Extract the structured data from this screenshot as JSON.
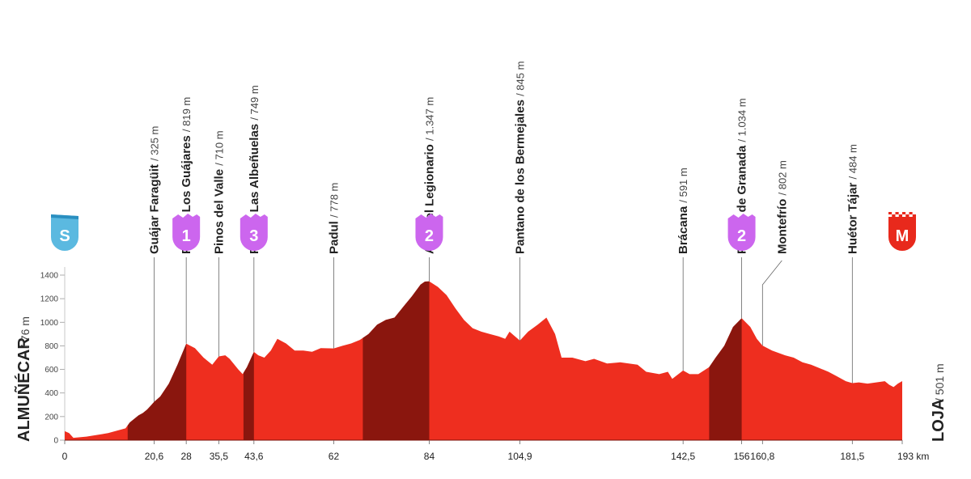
{
  "chart_data": {
    "type": "area",
    "start": {
      "name": "ALMUÑÉCAR",
      "alt": "/ 76 m",
      "badge": "S",
      "badge_color": "#5bb9e0"
    },
    "finish": {
      "name": "LOJA",
      "alt": "/ 501 m",
      "badge": "M",
      "badge_color": "#e8291c"
    },
    "ylim": [
      0,
      1400
    ],
    "y_ticks": [
      "0",
      "200",
      "400",
      "600",
      "800",
      "1000",
      "1200",
      "1400"
    ],
    "xlim": [
      0,
      193
    ],
    "x_ticks": [
      {
        "v": 0,
        "label": "0"
      },
      {
        "v": 20.6,
        "label": "20,6"
      },
      {
        "v": 28,
        "label": "28"
      },
      {
        "v": 35.5,
        "label": "35,5"
      },
      {
        "v": 43.6,
        "label": "43,6"
      },
      {
        "v": 62,
        "label": "62"
      },
      {
        "v": 84,
        "label": "84"
      },
      {
        "v": 104.9,
        "label": "104,9"
      },
      {
        "v": 142.5,
        "label": "142,5"
      },
      {
        "v": 156,
        "label": "156"
      },
      {
        "v": 160.8,
        "label": "160,8"
      },
      {
        "v": 181.5,
        "label": "181,5"
      },
      {
        "v": 193,
        "label": "193 km"
      }
    ],
    "waypoints": [
      {
        "km": 20.6,
        "name": "Guájar Faragüit",
        "alt": "/ 325 m"
      },
      {
        "km": 28,
        "name": "Puerto Los Guájares",
        "alt": "/ 819 m",
        "category": "1"
      },
      {
        "km": 35.5,
        "name": "Pinos del Valle",
        "alt": "/ 710 m"
      },
      {
        "km": 43.6,
        "name": "Puerto Las Albeñuelas",
        "alt": "/ 749 m",
        "category": "3"
      },
      {
        "km": 62,
        "name": "Padul",
        "alt": "/ 778 m"
      },
      {
        "km": 84,
        "name": "Alto del Legionario",
        "alt": "/ 1.347 m",
        "category": "2"
      },
      {
        "km": 104.9,
        "name": "Pantano de los Bermejales",
        "alt": "/ 845 m"
      },
      {
        "km": 142.5,
        "name": "Brácana",
        "alt": "/ 591 m"
      },
      {
        "km": 156,
        "name": "Puerto de Granada",
        "alt": "/ 1.034 m",
        "category": "2"
      },
      {
        "km": 160.8,
        "name": "Montefrío",
        "alt": "/ 802 m"
      },
      {
        "km": 181.5,
        "name": "Huétor Tájar",
        "alt": "/ 484 m"
      }
    ],
    "climbs": [
      {
        "from": 14.5,
        "to": 28
      },
      {
        "from": 41.2,
        "to": 43.6
      },
      {
        "from": 68.7,
        "to": 84
      },
      {
        "from": 148.5,
        "to": 156
      }
    ],
    "profile": [
      [
        0,
        76
      ],
      [
        1,
        60
      ],
      [
        2,
        20
      ],
      [
        5,
        30
      ],
      [
        10,
        60
      ],
      [
        14,
        100
      ],
      [
        15,
        150
      ],
      [
        16,
        180
      ],
      [
        17,
        210
      ],
      [
        18,
        230
      ],
      [
        19,
        260
      ],
      [
        20,
        300
      ],
      [
        20.6,
        325
      ],
      [
        22,
        370
      ],
      [
        24,
        480
      ],
      [
        26,
        640
      ],
      [
        28,
        819
      ],
      [
        30,
        780
      ],
      [
        32,
        700
      ],
      [
        34,
        640
      ],
      [
        35.5,
        710
      ],
      [
        37,
        720
      ],
      [
        38,
        690
      ],
      [
        40,
        600
      ],
      [
        41,
        560
      ],
      [
        42,
        620
      ],
      [
        43.6,
        749
      ],
      [
        44.6,
        720
      ],
      [
        46,
        700
      ],
      [
        47.5,
        760
      ],
      [
        49,
        860
      ],
      [
        51,
        820
      ],
      [
        53,
        760
      ],
      [
        55,
        760
      ],
      [
        57,
        750
      ],
      [
        59,
        780
      ],
      [
        62,
        778
      ],
      [
        64,
        800
      ],
      [
        66,
        820
      ],
      [
        68,
        850
      ],
      [
        70,
        900
      ],
      [
        72,
        980
      ],
      [
        74,
        1020
      ],
      [
        76,
        1040
      ],
      [
        78,
        1130
      ],
      [
        80,
        1220
      ],
      [
        82,
        1320
      ],
      [
        83,
        1345
      ],
      [
        84,
        1347
      ],
      [
        86,
        1300
      ],
      [
        88,
        1230
      ],
      [
        90,
        1120
      ],
      [
        92,
        1020
      ],
      [
        94,
        950
      ],
      [
        96,
        920
      ],
      [
        98,
        900
      ],
      [
        100,
        880
      ],
      [
        101.5,
        860
      ],
      [
        102.5,
        920
      ],
      [
        104.9,
        845
      ],
      [
        106.8,
        920
      ],
      [
        109,
        980
      ],
      [
        111,
        1040
      ],
      [
        113,
        900
      ],
      [
        114.5,
        700
      ],
      [
        117,
        700
      ],
      [
        120,
        670
      ],
      [
        122,
        690
      ],
      [
        125,
        650
      ],
      [
        128,
        660
      ],
      [
        132,
        640
      ],
      [
        134,
        580
      ],
      [
        137,
        560
      ],
      [
        139,
        580
      ],
      [
        140,
        520
      ],
      [
        142.5,
        591
      ],
      [
        144,
        560
      ],
      [
        146,
        560
      ],
      [
        148.5,
        620
      ],
      [
        150,
        700
      ],
      [
        152,
        800
      ],
      [
        154,
        960
      ],
      [
        156,
        1034
      ],
      [
        158,
        960
      ],
      [
        159.5,
        860
      ],
      [
        160.8,
        802
      ],
      [
        163,
        760
      ],
      [
        166,
        720
      ],
      [
        168,
        700
      ],
      [
        170,
        660
      ],
      [
        172,
        640
      ],
      [
        174,
        610
      ],
      [
        176,
        580
      ],
      [
        178,
        540
      ],
      [
        180,
        500
      ],
      [
        181.5,
        484
      ],
      [
        183,
        490
      ],
      [
        185,
        480
      ],
      [
        187,
        490
      ],
      [
        189,
        500
      ],
      [
        190,
        470
      ],
      [
        191,
        450
      ],
      [
        192,
        480
      ],
      [
        193,
        501
      ]
    ]
  }
}
